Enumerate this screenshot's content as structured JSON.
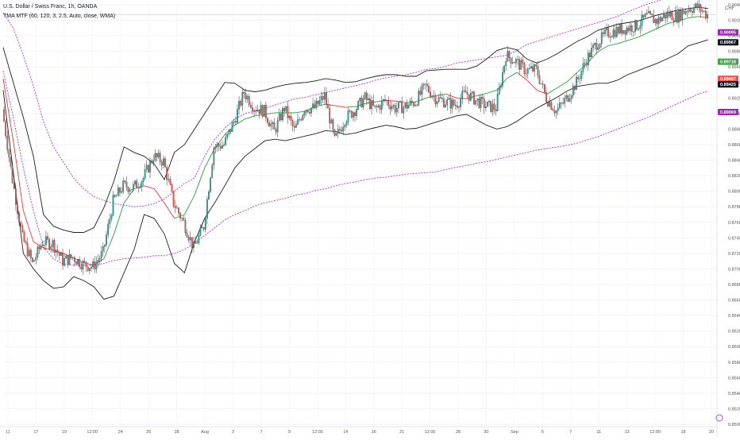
{
  "header": {
    "symbol_title": "U.S. Dollar / Swiss Franc, 1h, OANDA",
    "indicator_title": "TMA MTF (60, 120, 3, 2.5, Auto, close, WMA)",
    "currency": "CHF"
  },
  "colors": {
    "up_candle": "#26a69a",
    "down_candle": "#ef5350",
    "mid_up": "#2e9c3f",
    "mid_down": "#e53935",
    "band_inner": "#1e1e1e",
    "band_outer": "#b549c5",
    "badge_purple": "#9c27b0",
    "badge_black": "#131722",
    "badge_red": "#ef5350",
    "badge_green": "#43a047"
  },
  "chart_data": {
    "type": "line",
    "title": "U.S. Dollar / Swiss Franc, 1h, OANDA",
    "ylim": [
      0.8505,
      0.9045
    ],
    "y_ticks": [
      "0.90400",
      "0.90200",
      "0.90000",
      "0.89800",
      "0.89600",
      "0.89400",
      "0.89200",
      "0.89000",
      "0.88800",
      "0.88600",
      "0.88400",
      "0.88200",
      "0.88000",
      "0.87800",
      "0.87600",
      "0.87400",
      "0.87200",
      "0.87000",
      "0.86800",
      "0.86600",
      "0.86400",
      "0.86200",
      "0.86000",
      "0.85800",
      "0.85600",
      "0.85400",
      "0.85200",
      "0.85000"
    ],
    "x_ticks": [
      "11",
      "17",
      "19",
      "12:00",
      "24",
      "26",
      "28",
      "Aug",
      "3",
      "7",
      "9",
      "12:00",
      "14",
      "16",
      "21",
      "12:00",
      "28",
      "30",
      "Sep",
      "5",
      "7",
      "11",
      "13",
      "12:00",
      "18",
      "20"
    ],
    "series": [
      {
        "role": "price",
        "values": [
          0.891,
          0.882,
          0.8745,
          0.8712,
          0.874,
          0.8738,
          0.8715,
          0.872,
          0.8711,
          0.8708,
          0.8726,
          0.8792,
          0.8812,
          0.881,
          0.8822,
          0.885,
          0.8843,
          0.879,
          0.8765,
          0.8732,
          0.876,
          0.8862,
          0.8865,
          0.8895,
          0.8932,
          0.8913,
          0.8908,
          0.8882,
          0.8912,
          0.8883,
          0.8912,
          0.8912,
          0.8928,
          0.887,
          0.8898,
          0.891,
          0.8925,
          0.891,
          0.8922,
          0.8912,
          0.8914,
          0.892,
          0.894,
          0.8925,
          0.892,
          0.8916,
          0.8932,
          0.8922,
          0.8915,
          0.8912,
          0.898,
          0.8972,
          0.896,
          0.8962,
          0.8925,
          0.8908,
          0.8924,
          0.8945,
          0.8975,
          0.8995,
          0.9008,
          0.9012,
          0.9015,
          0.9018,
          0.903,
          0.9024,
          0.9033,
          0.903,
          0.904,
          0.9042,
          0.9032
        ]
      },
      {
        "role": "middle_band",
        "values": [
          0.895,
          0.887,
          0.878,
          0.874,
          0.8732,
          0.8729,
          0.8725,
          0.8719,
          0.8713,
          0.871,
          0.8718,
          0.875,
          0.879,
          0.8808,
          0.8812,
          0.8808,
          0.879,
          0.877,
          0.8775,
          0.88,
          0.8835,
          0.886,
          0.8878,
          0.889,
          0.8898,
          0.8902,
          0.8904,
          0.8906,
          0.8906,
          0.8906,
          0.8908,
          0.8914,
          0.8917,
          0.8915,
          0.8913,
          0.8914,
          0.8918,
          0.892,
          0.8922,
          0.8921,
          0.8919,
          0.892,
          0.8925,
          0.8928,
          0.893,
          0.8925,
          0.8924,
          0.8928,
          0.8931,
          0.8935,
          0.895,
          0.8958,
          0.8948,
          0.8935,
          0.893,
          0.8938,
          0.8946,
          0.8958,
          0.897,
          0.8984,
          0.8992,
          0.8995,
          0.8999,
          0.9003,
          0.9009,
          0.9015,
          0.9021,
          0.9024,
          0.9028,
          0.903,
          0.9028
        ]
      },
      {
        "role": "upper_band",
        "values": [
          0.899,
          0.8945,
          0.89,
          0.885,
          0.8775,
          0.876,
          0.8755,
          0.8752,
          0.8752,
          0.8758,
          0.8784,
          0.8818,
          0.8862,
          0.8855,
          0.885,
          0.884,
          0.882,
          0.8855,
          0.8865,
          0.8885,
          0.8905,
          0.8925,
          0.8945,
          0.8944,
          0.8935,
          0.8933,
          0.8935,
          0.8939,
          0.8942,
          0.8944,
          0.8945,
          0.8947,
          0.895,
          0.8948,
          0.8945,
          0.8946,
          0.895,
          0.8953,
          0.8955,
          0.8955,
          0.8953,
          0.8953,
          0.896,
          0.8961,
          0.8962,
          0.8962,
          0.8962,
          0.8966,
          0.8975,
          0.8986,
          0.899,
          0.8987,
          0.8975,
          0.897,
          0.8975,
          0.8982,
          0.899,
          0.8998,
          0.9004,
          0.9012,
          0.9016,
          0.902,
          0.9022,
          0.9024,
          0.9028,
          0.9032,
          0.9035,
          0.9038,
          0.904,
          0.9042,
          0.904
        ]
      },
      {
        "role": "lower_band",
        "values": [
          0.8935,
          0.883,
          0.8725,
          0.8705,
          0.869,
          0.868,
          0.8682,
          0.8695,
          0.869,
          0.8682,
          0.8666,
          0.867,
          0.87,
          0.873,
          0.8775,
          0.877,
          0.875,
          0.8712,
          0.87,
          0.874,
          0.877,
          0.879,
          0.8812,
          0.8835,
          0.885,
          0.886,
          0.887,
          0.8872,
          0.887,
          0.8873,
          0.8876,
          0.8879,
          0.8883,
          0.8882,
          0.8878,
          0.888,
          0.8884,
          0.8887,
          0.889,
          0.8888,
          0.8885,
          0.8886,
          0.889,
          0.8894,
          0.8898,
          0.8902,
          0.8904,
          0.8897,
          0.889,
          0.8885,
          0.8888,
          0.8895,
          0.8904,
          0.8912,
          0.8919,
          0.8926,
          0.8934,
          0.894,
          0.8942,
          0.8944,
          0.8944,
          0.8948,
          0.8955,
          0.896,
          0.8965,
          0.897,
          0.8976,
          0.8982,
          0.8992,
          0.8996,
          0.9
        ]
      },
      {
        "role": "outer_upper_band",
        "values": [
          0.9035,
          0.9015,
          0.898,
          0.894,
          0.8895,
          0.8862,
          0.8842,
          0.8822,
          0.8808,
          0.8798,
          0.8793,
          0.8789,
          0.8787,
          0.8785,
          0.8786,
          0.8789,
          0.8795,
          0.8805,
          0.8815,
          0.8822,
          0.885,
          0.8872,
          0.8886,
          0.8898,
          0.8905,
          0.8908,
          0.8912,
          0.8916,
          0.892,
          0.8924,
          0.8926,
          0.8929,
          0.8932,
          0.8935,
          0.8938,
          0.8941,
          0.8944,
          0.8948,
          0.8951,
          0.8953,
          0.8955,
          0.8958,
          0.8962,
          0.8963,
          0.8966,
          0.897,
          0.8972,
          0.8974,
          0.8976,
          0.8978,
          0.898,
          0.8986,
          0.8994,
          0.8998,
          0.9002,
          0.9006,
          0.901,
          0.9014,
          0.9018,
          0.9022,
          0.9026,
          0.903,
          0.9036,
          0.9041,
          0.9046,
          0.905,
          0.9054,
          0.9057,
          0.906,
          0.9063,
          0.9066
        ]
      },
      {
        "role": "outer_lower_band",
        "values": [
          0.896,
          0.89,
          0.8835,
          0.878,
          0.8733,
          0.8718,
          0.8711,
          0.871,
          0.871,
          0.871,
          0.8712,
          0.8716,
          0.8718,
          0.8719,
          0.872,
          0.8722,
          0.8722,
          0.8725,
          0.873,
          0.8738,
          0.8748,
          0.8758,
          0.8768,
          0.8775,
          0.878,
          0.8786,
          0.879,
          0.8793,
          0.8796,
          0.88,
          0.8802,
          0.8806,
          0.8808,
          0.8812,
          0.8815,
          0.8817,
          0.882,
          0.8822,
          0.8823,
          0.8825,
          0.8827,
          0.8828,
          0.8829,
          0.883,
          0.8833,
          0.8836,
          0.8838,
          0.8841,
          0.8843,
          0.8846,
          0.8849,
          0.8852,
          0.8855,
          0.8858,
          0.886,
          0.8862,
          0.8864,
          0.8867,
          0.8871,
          0.8875,
          0.888,
          0.8885,
          0.889,
          0.8895,
          0.89,
          0.8906,
          0.8912,
          0.8918,
          0.8924,
          0.893,
          0.8934
        ]
      }
    ],
    "price_labels": [
      {
        "value": "0.90095",
        "style": "purple"
      },
      {
        "value": "0.89967",
        "style": "black"
      },
      {
        "value": "0.89718",
        "style": "green"
      },
      {
        "value": "0.89497",
        "style": "red"
      },
      {
        "value": "0.89425",
        "style": "black"
      },
      {
        "value": "0.89069",
        "style": "purple"
      }
    ]
  }
}
